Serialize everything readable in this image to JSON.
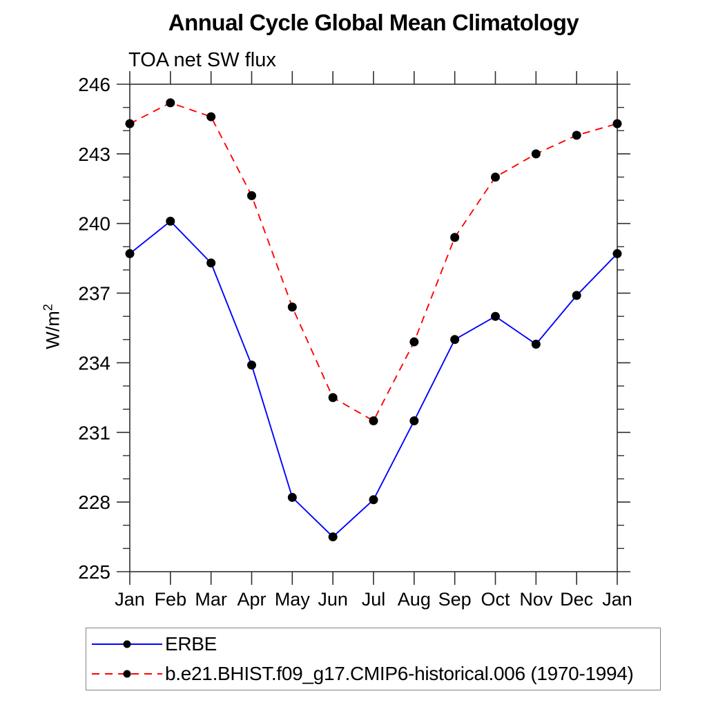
{
  "chart_data": {
    "type": "line",
    "title": "Annual Cycle Global Mean Climatology",
    "subtitle": "TOA net SW flux",
    "ylabel": {
      "base": "W/m",
      "exponent": "2"
    },
    "categories": [
      "Jan",
      "Feb",
      "Mar",
      "Apr",
      "May",
      "Jun",
      "Jul",
      "Aug",
      "Sep",
      "Oct",
      "Nov",
      "Dec",
      "Jan"
    ],
    "ylim": [
      225,
      246
    ],
    "yticks_major": [
      225,
      228,
      231,
      234,
      237,
      240,
      243,
      246
    ],
    "ytick_minor_step": 1,
    "grid": false,
    "legend_position": "bottom-left-box",
    "series": [
      {
        "name": "ERBE",
        "color": "#0000ff",
        "line_style": "solid",
        "marker": "filled-circle",
        "marker_color": "#000000",
        "values": [
          238.7,
          240.1,
          238.3,
          233.9,
          228.2,
          226.5,
          228.1,
          231.5,
          235.0,
          236.0,
          234.8,
          236.9,
          238.7
        ]
      },
      {
        "name": "b.e21.BHIST.f09_g17.CMIP6-historical.006 (1970-1994)",
        "color": "#ff0000",
        "line_style": "dashed",
        "marker": "filled-circle",
        "marker_color": "#000000",
        "values": [
          244.3,
          245.2,
          244.6,
          241.2,
          236.4,
          232.5,
          231.5,
          234.9,
          239.4,
          242.0,
          243.0,
          243.8,
          244.3
        ]
      }
    ]
  },
  "style": {
    "axis_color": "#2e2e2e",
    "text_color": "#000000",
    "background": "#ffffff",
    "legend_border": "#808080"
  }
}
